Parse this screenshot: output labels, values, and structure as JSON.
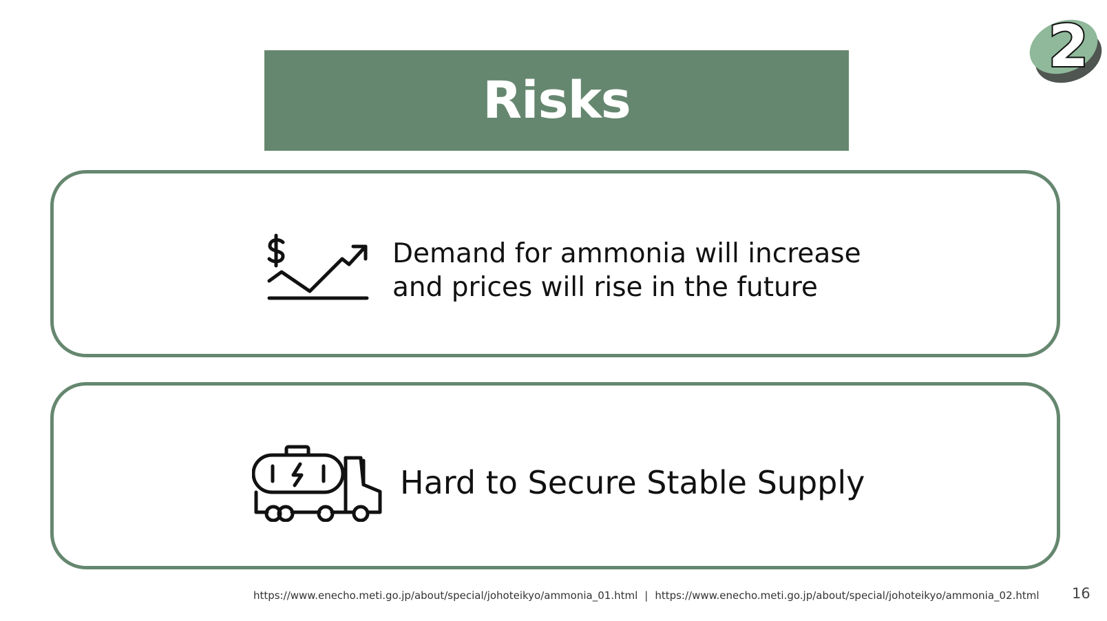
{
  "slide": {
    "title": "Risks",
    "badge_number": "2",
    "page_number": "16"
  },
  "risks": [
    {
      "icon": "price-increase-chart-icon",
      "line1": "Demand for ammonia will increase",
      "line2": "and prices will rise in the future"
    },
    {
      "icon": "tanker-truck-icon",
      "text": "Hard to Secure Stable Supply"
    }
  ],
  "sources": {
    "url1": "https://www.enecho.meti.go.jp/about/special/johoteikyo/ammonia_01.html",
    "separator": "|",
    "url2": "https://www.enecho.meti.go.jp/about/special/johoteikyo/ammonia_02.html"
  },
  "colors": {
    "accent_green": "#65876f",
    "badge_light_green": "#8fb99a",
    "badge_dark_gray": "#4f5550",
    "text": "#111111"
  }
}
